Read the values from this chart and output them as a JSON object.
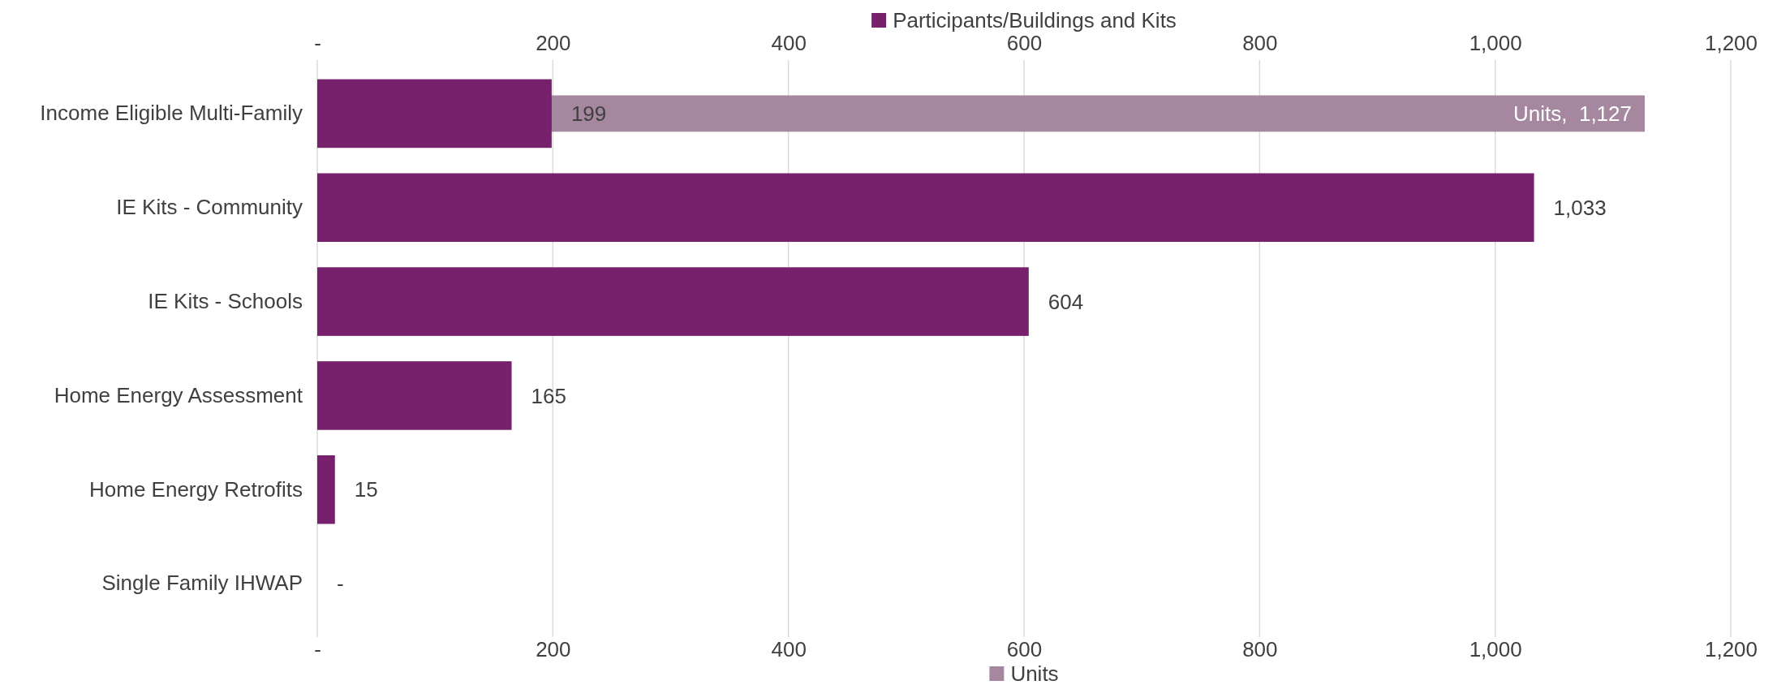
{
  "chart_data": {
    "type": "bar",
    "orientation": "horizontal",
    "categories": [
      "Income Eligible Multi-Family",
      "IE Kits - Community",
      "IE Kits - Schools",
      "Home Energy Assessment",
      "Home Energy Retrofits",
      "Single Family IHWAP"
    ],
    "series": [
      {
        "name": "Units",
        "color": "#a5889f",
        "values": [
          1127,
          null,
          null,
          null,
          null,
          null
        ],
        "value_labels": [
          "Units,  1,127",
          null,
          null,
          null,
          null,
          null
        ]
      },
      {
        "name": "Participants/Buildings and Kits",
        "color": "#77206b",
        "axis": "x2",
        "values": [
          199,
          1033,
          604,
          165,
          15,
          0
        ],
        "value_labels": [
          "199",
          "1,033",
          "604",
          "165",
          "15",
          "-"
        ]
      }
    ],
    "xlim": [
      0,
      1200
    ],
    "xticks": [
      {
        "value": 0,
        "label": "-"
      },
      200,
      400,
      600,
      800,
      {
        "value": 1000,
        "label": "1,000"
      },
      {
        "value": 1200,
        "label": "1,200"
      }
    ],
    "x2lim": [
      0,
      1200
    ],
    "x2ticks": [
      {
        "value": 0,
        "label": "-"
      },
      200,
      400,
      600,
      800,
      {
        "value": 1000,
        "label": "1,000"
      },
      {
        "value": 1200,
        "label": "1,200"
      }
    ],
    "grid": "x",
    "legend": "top"
  }
}
